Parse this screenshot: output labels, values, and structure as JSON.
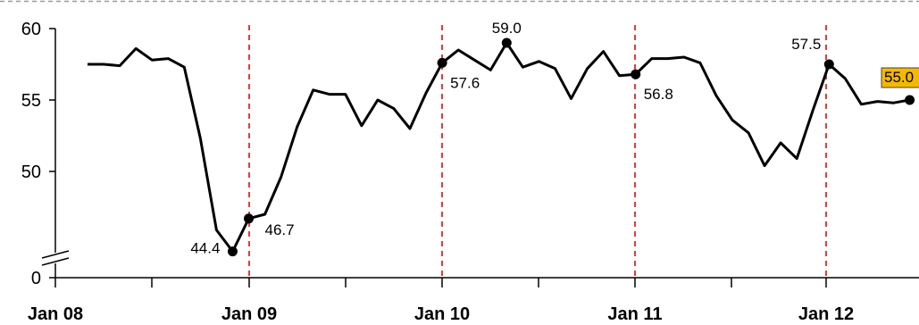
{
  "chart_data": {
    "type": "line",
    "title": "",
    "xlabel": "",
    "ylabel": "",
    "ylim": [
      0,
      60
    ],
    "y_axis_break": true,
    "y_ticks": [
      0,
      50,
      55,
      60
    ],
    "x_tick_labels": [
      "Jan 08",
      "Jan 09",
      "Jan 10",
      "Jan 11",
      "Jan 12"
    ],
    "grid": false,
    "colors": {
      "line": "#000000",
      "year_marker": "#cc0000",
      "highlight_label": "#f5b800"
    },
    "series": [
      {
        "values": [
          57.5,
          57.5,
          57.4,
          58.6,
          57.8,
          57.9,
          57.3,
          52.3,
          45.9,
          44.4,
          46.7,
          47.0,
          49.6,
          53.1,
          55.7,
          55.4,
          55.4,
          53.2,
          55.0,
          54.4,
          53.0,
          55.5,
          57.6,
          58.5,
          57.8,
          57.1,
          59.0,
          57.3,
          57.7,
          57.2,
          55.1,
          57.2,
          58.4,
          56.7,
          56.8,
          57.9,
          57.9,
          58.0,
          57.6,
          55.3,
          53.6,
          52.7,
          50.4,
          52.0,
          50.9,
          54.3,
          57.5,
          56.5,
          54.7,
          54.9,
          54.8,
          55.0
        ]
      }
    ],
    "annotations": [
      {
        "text": "44.4",
        "value": 44.4
      },
      {
        "text": "46.7",
        "value": 46.7
      },
      {
        "text": "57.6",
        "value": 57.6
      },
      {
        "text": "59.0",
        "value": 59.0
      },
      {
        "text": "56.8",
        "value": 56.8
      },
      {
        "text": "57.5",
        "value": 57.5
      },
      {
        "text": "55.0",
        "value": 55.0,
        "highlight": true
      }
    ]
  }
}
